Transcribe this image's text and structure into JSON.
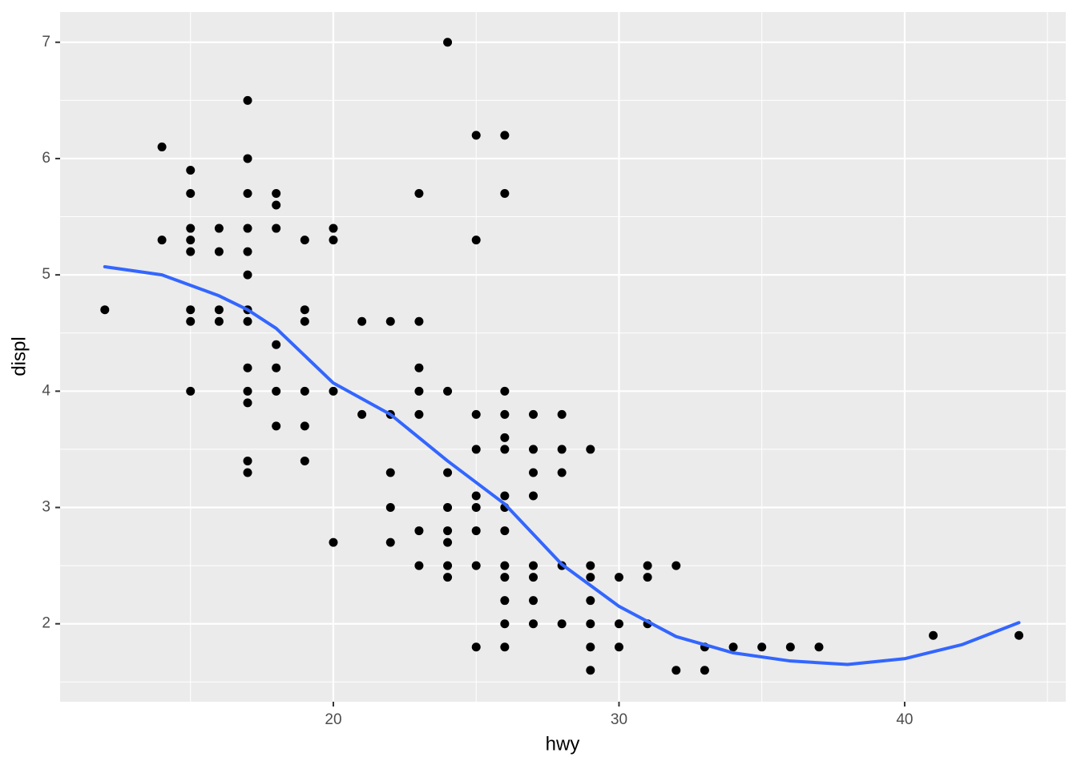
{
  "chart_data": {
    "type": "scatter",
    "x_label": "hwy",
    "y_label": "displ",
    "color": "#000000",
    "x": [
      12,
      14,
      14,
      15,
      15,
      15,
      15,
      15,
      15,
      15,
      15,
      16,
      16,
      16,
      16,
      17,
      17,
      17,
      17,
      17,
      17,
      17,
      17,
      17,
      17,
      17,
      17,
      17,
      18,
      18,
      18,
      18,
      18,
      18,
      18,
      19,
      19,
      19,
      19,
      19,
      19,
      20,
      20,
      20,
      20,
      21,
      21,
      22,
      22,
      22,
      22,
      22,
      23,
      23,
      23,
      23,
      23,
      23,
      23,
      24,
      24,
      24,
      24,
      24,
      24,
      24,
      24,
      25,
      25,
      25,
      25,
      25,
      25,
      25,
      25,
      25,
      26,
      26,
      26,
      26,
      26,
      26,
      26,
      26,
      26,
      26,
      26,
      26,
      26,
      26,
      27,
      27,
      27,
      27,
      27,
      27,
      27,
      27,
      28,
      28,
      28,
      28,
      28,
      29,
      29,
      29,
      29,
      29,
      29,
      29,
      30,
      30,
      30,
      31,
      31,
      31,
      32,
      32,
      33,
      33,
      34,
      35,
      36,
      37,
      41,
      44
    ],
    "values": [
      4.7,
      6.1,
      5.3,
      5.9,
      5.7,
      5.4,
      5.3,
      5.2,
      4.7,
      4.6,
      4.0,
      5.4,
      5.2,
      4.7,
      4.6,
      6.5,
      6.0,
      5.7,
      5.4,
      5.2,
      5.0,
      4.7,
      4.6,
      4.2,
      4.0,
      3.9,
      3.4,
      3.3,
      5.7,
      5.6,
      5.4,
      4.4,
      4.2,
      4.0,
      3.7,
      5.3,
      4.7,
      4.6,
      4.0,
      3.7,
      3.4,
      5.4,
      5.3,
      4.0,
      2.7,
      4.6,
      3.8,
      4.6,
      3.8,
      3.3,
      3.0,
      2.7,
      5.7,
      4.6,
      4.2,
      4.0,
      3.8,
      2.8,
      2.5,
      7.0,
      4.0,
      3.3,
      3.0,
      2.8,
      2.7,
      2.5,
      2.4,
      6.2,
      5.3,
      3.8,
      3.5,
      3.1,
      3.0,
      2.8,
      2.5,
      1.8,
      6.2,
      5.7,
      4.0,
      3.8,
      3.6,
      3.5,
      3.1,
      3.0,
      2.8,
      2.5,
      2.4,
      2.2,
      2.0,
      1.8,
      3.8,
      3.5,
      3.3,
      3.1,
      2.5,
      2.4,
      2.2,
      2.0,
      3.8,
      3.5,
      3.3,
      2.5,
      2.0,
      3.5,
      2.5,
      2.4,
      2.2,
      2.0,
      1.8,
      1.6,
      2.4,
      2.0,
      1.8,
      2.5,
      2.4,
      2.0,
      2.5,
      1.6,
      1.8,
      1.6,
      1.8,
      1.8,
      1.8,
      1.8,
      1.9,
      1.9
    ],
    "smooth": {
      "type": "line",
      "color": "#3366ff",
      "x": [
        12,
        14,
        16,
        17,
        18,
        20,
        22,
        24,
        26,
        28,
        30,
        32,
        34,
        36,
        38,
        40,
        42,
        44
      ],
      "values": [
        5.07,
        5.0,
        4.82,
        4.7,
        4.54,
        4.07,
        3.8,
        3.4,
        3.03,
        2.51,
        2.15,
        1.89,
        1.75,
        1.68,
        1.65,
        1.7,
        1.82,
        2.01
      ]
    },
    "xlim": [
      10.435,
      45.64
    ],
    "ylim": [
      1.33,
      7.26
    ],
    "xticks": [
      20,
      30,
      40
    ],
    "yticks": [
      2,
      3,
      4,
      5,
      6,
      7
    ],
    "grid": true
  }
}
